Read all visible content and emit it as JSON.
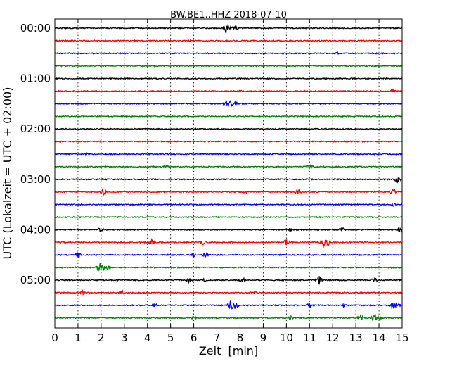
{
  "chart_data": {
    "type": "line",
    "title": "BW.BE1..HHZ 2018-07-10",
    "xlabel": "Zeit  [min]",
    "ylabel": "UTC (Lokalzeit = UTC + 02:00)",
    "xlim": [
      0,
      15
    ],
    "xticks": [
      "0",
      "1",
      "2",
      "3",
      "4",
      "5",
      "6",
      "7",
      "8",
      "9",
      "10",
      "11",
      "12",
      "13",
      "14",
      "15"
    ],
    "ytick_labels": [
      "00:00",
      "01:00",
      "02:00",
      "03:00",
      "04:00",
      "05:00"
    ],
    "grid": "vertical dotted",
    "trace_colors": [
      "#000000",
      "#ff0000",
      "#0000ff",
      "#008000"
    ],
    "series": [
      {
        "start": "00:00",
        "color_index": 0,
        "events": [
          [
            7.4,
            8
          ],
          [
            7.6,
            6
          ],
          [
            7.8,
            4
          ]
        ]
      },
      {
        "start": "00:15",
        "color_index": 1,
        "events": [
          [
            5.8,
            2
          ]
        ]
      },
      {
        "start": "00:30",
        "color_index": 2,
        "events": [
          [
            12.2,
            2
          ]
        ]
      },
      {
        "start": "00:45",
        "color_index": 3,
        "events": []
      },
      {
        "start": "01:00",
        "color_index": 0,
        "events": []
      },
      {
        "start": "01:15",
        "color_index": 1,
        "events": [
          [
            14.6,
            3
          ],
          [
            8.0,
            1.5
          ]
        ]
      },
      {
        "start": "01:30",
        "color_index": 2,
        "events": [
          [
            7.4,
            4
          ],
          [
            7.6,
            5
          ],
          [
            7.8,
            3
          ]
        ]
      },
      {
        "start": "01:45",
        "color_index": 3,
        "events": []
      },
      {
        "start": "02:00",
        "color_index": 0,
        "events": []
      },
      {
        "start": "02:15",
        "color_index": 1,
        "events": []
      },
      {
        "start": "02:30",
        "color_index": 2,
        "events": [
          [
            1.4,
            2
          ]
        ]
      },
      {
        "start": "02:45",
        "color_index": 3,
        "events": [
          [
            4.8,
            3
          ],
          [
            11.0,
            4
          ],
          [
            11.2,
            2
          ]
        ]
      },
      {
        "start": "03:00",
        "color_index": 0,
        "events": [
          [
            14.8,
            6
          ]
        ]
      },
      {
        "start": "03:15",
        "color_index": 1,
        "events": [
          [
            2.1,
            5
          ],
          [
            10.5,
            5
          ],
          [
            14.6,
            5
          ],
          [
            8.2,
            2
          ]
        ]
      },
      {
        "start": "03:30",
        "color_index": 2,
        "events": [
          [
            14.6,
            3
          ]
        ]
      },
      {
        "start": "03:45",
        "color_index": 3,
        "events": []
      },
      {
        "start": "04:00",
        "color_index": 0,
        "events": [
          [
            2.0,
            4
          ],
          [
            10.1,
            4
          ],
          [
            12.4,
            4
          ],
          [
            14.9,
            3
          ]
        ]
      },
      {
        "start": "04:15",
        "color_index": 1,
        "events": [
          [
            4.2,
            5
          ],
          [
            6.4,
            5
          ],
          [
            10.0,
            5
          ],
          [
            11.6,
            8
          ],
          [
            11.8,
            5
          ]
        ]
      },
      {
        "start": "04:30",
        "color_index": 2,
        "events": [
          [
            1.0,
            5
          ],
          [
            6.0,
            3
          ],
          [
            6.5,
            5
          ]
        ]
      },
      {
        "start": "04:45",
        "color_index": 3,
        "events": [
          [
            1.9,
            9
          ],
          [
            2.1,
            6
          ],
          [
            2.3,
            3
          ],
          [
            8.8,
            2
          ]
        ]
      },
      {
        "start": "05:00",
        "color_index": 0,
        "events": [
          [
            5.8,
            4
          ],
          [
            6.5,
            3
          ],
          [
            8.1,
            4
          ],
          [
            11.4,
            7
          ],
          [
            13.8,
            4
          ]
        ]
      },
      {
        "start": "05:15",
        "color_index": 1,
        "events": [
          [
            1.2,
            3
          ],
          [
            2.9,
            4
          ],
          [
            8.6,
            4
          ]
        ]
      },
      {
        "start": "05:30",
        "color_index": 2,
        "events": [
          [
            4.3,
            4
          ],
          [
            7.6,
            9
          ],
          [
            7.8,
            6
          ],
          [
            11.0,
            4
          ],
          [
            12.5,
            3
          ],
          [
            14.6,
            6
          ],
          [
            14.8,
            4
          ]
        ]
      },
      {
        "start": "05:45",
        "color_index": 3,
        "events": [
          [
            6.0,
            3
          ],
          [
            10.2,
            3
          ],
          [
            13.2,
            6
          ],
          [
            13.8,
            6
          ],
          [
            14.0,
            4
          ]
        ]
      }
    ]
  }
}
